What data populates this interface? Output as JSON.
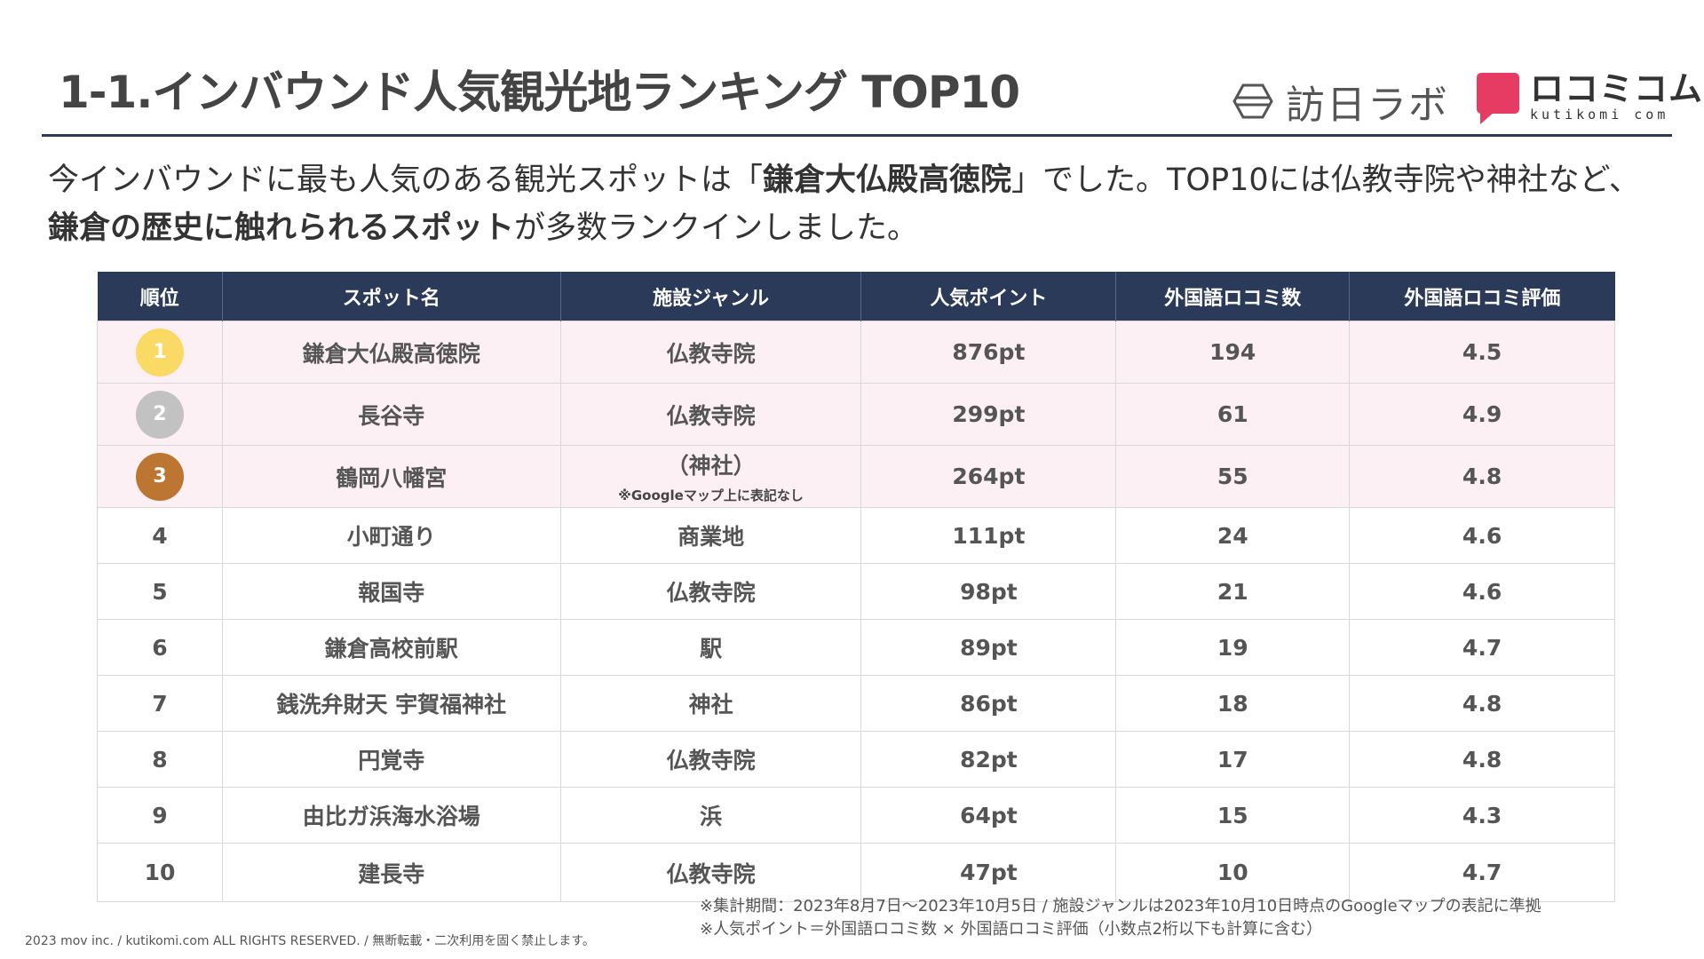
{
  "header": {
    "title": "1-1.インバウンド人気観光地ランキング TOP10",
    "logo1_icon": "hexagon-logo-icon",
    "logo1_text": "訪日ラボ",
    "logo2_text": "ロコミコム",
    "logo2_sub": "kutikomi com"
  },
  "intro": {
    "p1": "今インバウンドに最も人気のある観光スポットは「",
    "b1": "鎌倉大仏殿高徳院",
    "p2": "」でした。TOP10には仏教寺院や神社など、",
    "b2": "鎌倉の歴史に触れられるスポット",
    "p3": "が多数ランクインしました。"
  },
  "colors": {
    "navy": "#2c3a5a",
    "highlight_row": "#fdf0f4",
    "gold": "#fbd965",
    "silver": "#c2c2c2",
    "bronze": "#bd7632",
    "brand_pink": "#e63c63"
  },
  "table": {
    "headers": [
      "順位",
      "スポット名",
      "施設ジャンル",
      "人気ポイント",
      "外国語ロコミ数",
      "外国語ロコミ評価"
    ],
    "rows": [
      {
        "rank": "1",
        "spot": "鎌倉大仏殿高徳院",
        "genre": "仏教寺院",
        "points": "876pt",
        "reviews": "194",
        "rating": "4.5"
      },
      {
        "rank": "2",
        "spot": "長谷寺",
        "genre": "仏教寺院",
        "points": "299pt",
        "reviews": "61",
        "rating": "4.9"
      },
      {
        "rank": "3",
        "spot": "鶴岡八幡宮",
        "genre": "（神社）",
        "genre_note": "※Googleマップ上に表記なし",
        "points": "264pt",
        "reviews": "55",
        "rating": "4.8"
      },
      {
        "rank": "4",
        "spot": "小町通り",
        "genre": "商業地",
        "points": "111pt",
        "reviews": "24",
        "rating": "4.6"
      },
      {
        "rank": "5",
        "spot": "報国寺",
        "genre": "仏教寺院",
        "points": "98pt",
        "reviews": "21",
        "rating": "4.6"
      },
      {
        "rank": "6",
        "spot": "鎌倉高校前駅",
        "genre": "駅",
        "points": "89pt",
        "reviews": "19",
        "rating": "4.7"
      },
      {
        "rank": "7",
        "spot": "銭洗弁財天 宇賀福神社",
        "genre": "神社",
        "points": "86pt",
        "reviews": "18",
        "rating": "4.8"
      },
      {
        "rank": "8",
        "spot": "円覚寺",
        "genre": "仏教寺院",
        "points": "82pt",
        "reviews": "17",
        "rating": "4.8"
      },
      {
        "rank": "9",
        "spot": "由比ガ浜海水浴場",
        "genre": "浜",
        "points": "64pt",
        "reviews": "15",
        "rating": "4.3"
      },
      {
        "rank": "10",
        "spot": "建長寺",
        "genre": "仏教寺院",
        "points": "47pt",
        "reviews": "10",
        "rating": "4.7"
      }
    ]
  },
  "footer": {
    "note1": "※集計期間：2023年8月7日～2023年10月5日 / 施設ジャンルは2023年10月10日時点のGoogleマップの表記に準拠",
    "note2": "※人気ポイント＝外国語ロコミ数 × 外国語ロコミ評価（小数点2桁以下も計算に含む）",
    "copyright": "2023 mov inc. / kutikomi.com ALL RIGHTS RESERVED. / 無断転載・二次利用を固く禁止します。"
  }
}
